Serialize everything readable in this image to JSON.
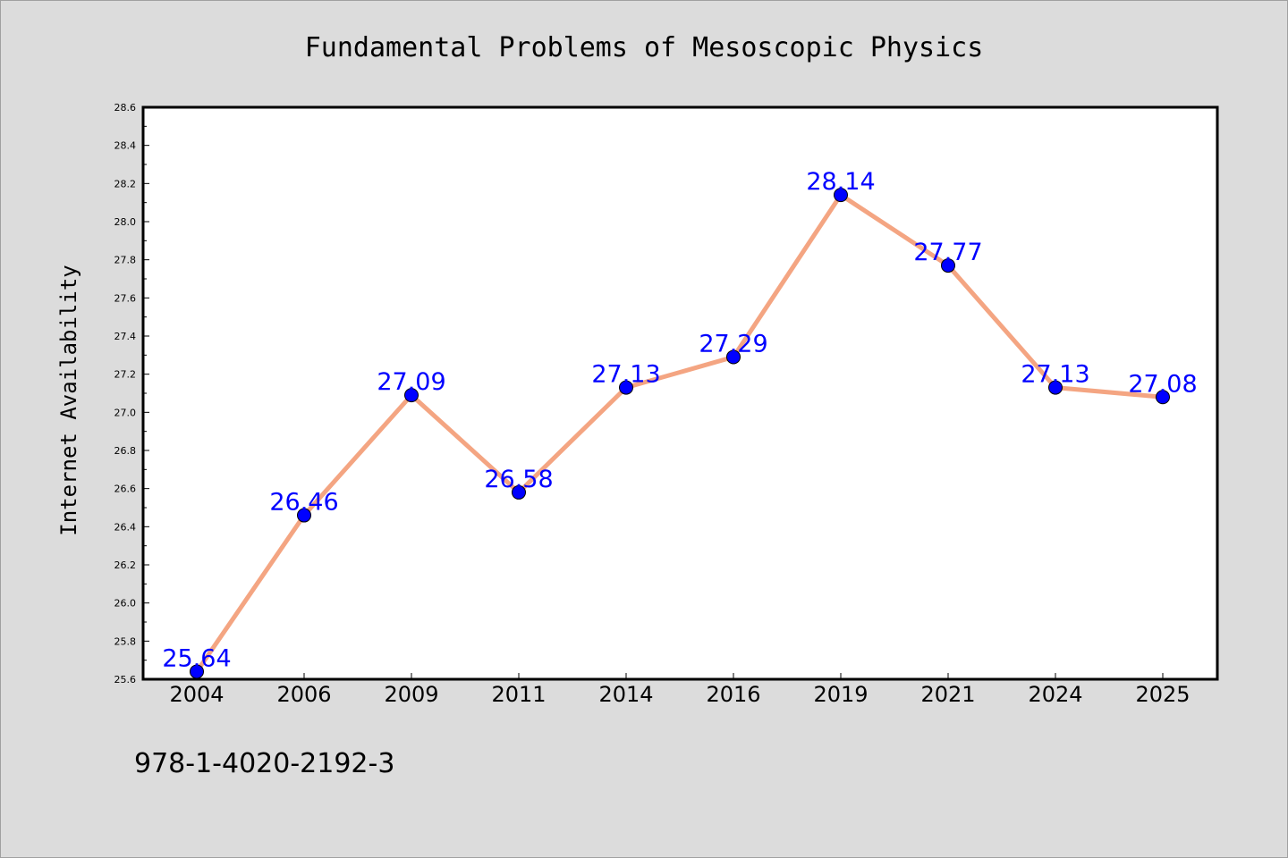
{
  "chart_data": {
    "type": "line",
    "title": "Fundamental Problems of Mesoscopic Physics",
    "ylabel": "Internet Availability",
    "xlabel": "",
    "categories": [
      "2004",
      "2006",
      "2009",
      "2011",
      "2014",
      "2016",
      "2019",
      "2021",
      "2024",
      "2025"
    ],
    "values": [
      25.64,
      26.46,
      27.09,
      26.58,
      27.13,
      27.29,
      28.14,
      27.77,
      27.13,
      27.08
    ],
    "data_labels": [
      "25.64",
      "26.46",
      "27.09",
      "26.58",
      "27.13",
      "27.29",
      "28.14",
      "27.77",
      "27.13",
      "27.08"
    ],
    "ylim": [
      25.6,
      28.6
    ],
    "yticks": [
      "25.6",
      "25.8",
      "26.0",
      "26.2",
      "26.4",
      "26.6",
      "26.8",
      "27.0",
      "27.2",
      "27.4",
      "27.6",
      "27.8",
      "28.0",
      "28.2",
      "28.4",
      "28.6"
    ],
    "grid": false,
    "line_color": "#f4a582",
    "marker_color": "#0000ff",
    "label_color": "#0000ff",
    "background": "#dcdcdc",
    "plot_background": "#ffffff"
  },
  "footer_text": "978-1-4020-2192-3"
}
